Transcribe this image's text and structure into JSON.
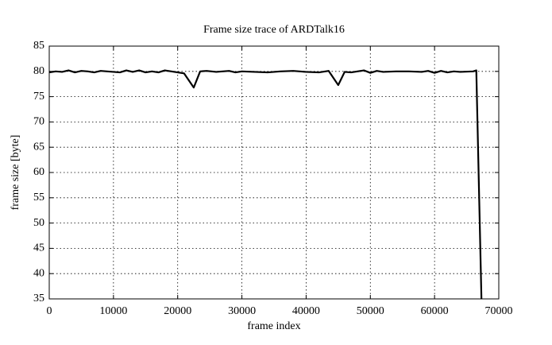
{
  "chart_data": {
    "type": "line",
    "title": "Frame size trace of ARDTalk16",
    "x_label": "frame index",
    "y_label": "frame size [byte]",
    "x": [
      0,
      1000,
      2000,
      3000,
      4000,
      5000,
      6000,
      7000,
      8000,
      9000,
      10000,
      11000,
      12000,
      13000,
      14000,
      15000,
      16000,
      17000,
      18000,
      19000,
      20000,
      21000,
      22500,
      23500,
      24500,
      26000,
      27000,
      28000,
      29000,
      30000,
      32000,
      34000,
      36000,
      38000,
      40000,
      42000,
      43500,
      45000,
      46000,
      47000,
      48000,
      49000,
      50000,
      51000,
      52000,
      54000,
      56000,
      58000,
      59000,
      60000,
      61000,
      62000,
      63000,
      64000,
      66000,
      66500,
      67300
    ],
    "series": [
      {
        "name": "frame size",
        "color": "#000000",
        "values": [
          79.8,
          80,
          79.9,
          80.2,
          79.8,
          80.1,
          80,
          79.8,
          80.1,
          80,
          79.9,
          79.8,
          80.2,
          79.9,
          80.2,
          79.8,
          80,
          79.8,
          80.2,
          80,
          79.8,
          79.6,
          76.8,
          80,
          80.1,
          79.9,
          80,
          80.1,
          79.8,
          80,
          79.9,
          79.8,
          80,
          80.1,
          79.9,
          79.8,
          80.1,
          77.3,
          79.9,
          79.8,
          80,
          80.2,
          79.7,
          80.1,
          79.9,
          80,
          80,
          79.9,
          80.1,
          79.7,
          80.1,
          79.8,
          80,
          79.9,
          80,
          80.2,
          35
        ]
      }
    ],
    "xlim": [
      0,
      70000
    ],
    "xticks": [
      0,
      10000,
      20000,
      30000,
      40000,
      50000,
      60000,
      70000
    ],
    "ylim": [
      35,
      85
    ],
    "yticks": [
      35,
      40,
      45,
      50,
      55,
      60,
      65,
      70,
      75,
      80,
      85
    ],
    "grid": true
  }
}
